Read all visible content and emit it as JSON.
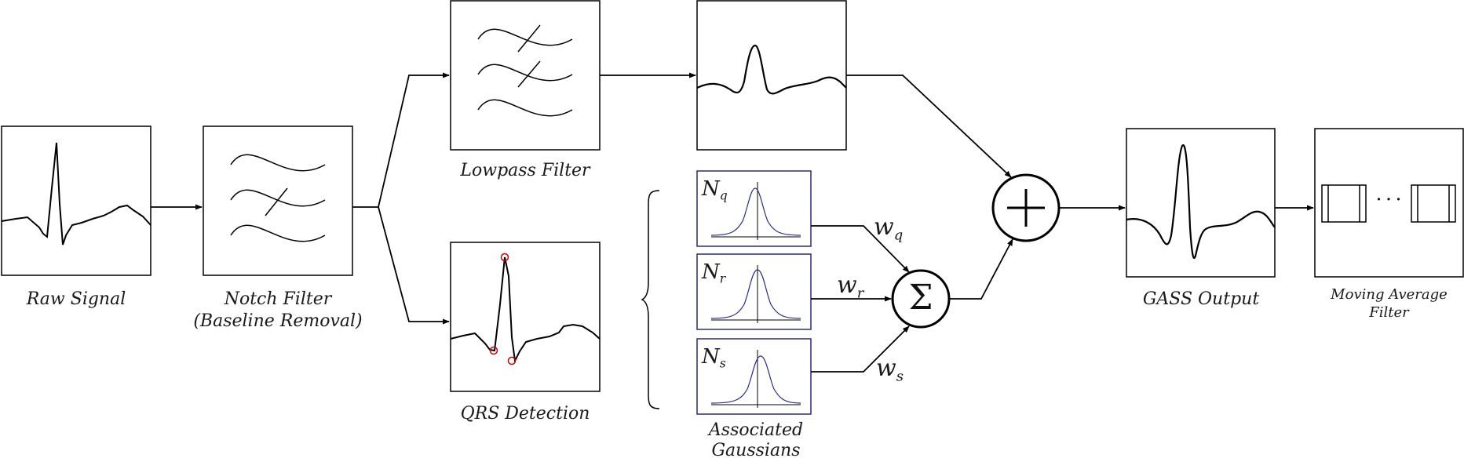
{
  "captions": {
    "raw_signal": "Raw Signal",
    "notch_line1": "Notch Filter",
    "notch_line2": "(Baseline Removal)",
    "lowpass": "Lowpass Filter",
    "qrs": "QRS Detection",
    "gaussians_line1": "Associated",
    "gaussians_line2": "Gaussians",
    "gass": "GASS Output",
    "moving_avg_line1": "Moving Average",
    "moving_avg_line2": "Filter"
  },
  "gaussians": {
    "q": {
      "symbol": "N",
      "sub": "q"
    },
    "r": {
      "symbol": "N",
      "sub": "r"
    },
    "s": {
      "symbol": "N",
      "sub": "s"
    }
  },
  "weights": {
    "q": {
      "symbol": "w",
      "sub": "q"
    },
    "r": {
      "symbol": "w",
      "sub": "r"
    },
    "s": {
      "symbol": "w",
      "sub": "s"
    }
  },
  "operators": {
    "sum": "Σ",
    "plus": "+",
    "ellipsis": "· · ·"
  },
  "colors": {
    "stroke": "#000000",
    "gaussian_border": "#2a2a7a",
    "gaussian_curve": "#2a2a8a",
    "qrs_marker": "#d00000"
  }
}
